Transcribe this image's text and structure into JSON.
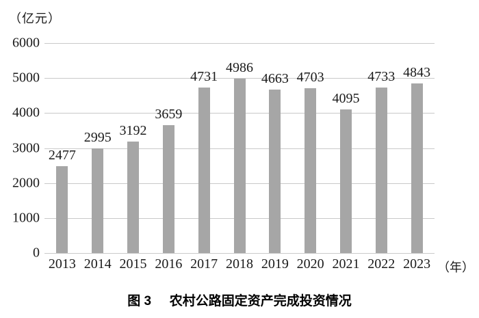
{
  "chart_data": {
    "type": "bar",
    "title": "图 3 农村公路固定资产完成投资情况",
    "y_unit_label": "（亿元）",
    "x_unit_label": "（年）",
    "categories": [
      "2013",
      "2014",
      "2015",
      "2016",
      "2017",
      "2018",
      "2019",
      "2020",
      "2021",
      "2022",
      "2023"
    ],
    "values": [
      2477,
      2995,
      3192,
      3659,
      4731,
      4986,
      4663,
      4703,
      4095,
      4733,
      4843
    ],
    "xlabel": "年",
    "ylabel": "亿元",
    "ylim": [
      0,
      6000
    ],
    "yticks": [
      0,
      1000,
      2000,
      3000,
      4000,
      5000,
      6000
    ],
    "grid": "horizontal",
    "legend": "none",
    "bar_color": "#a6a6a6",
    "grid_color": "#c9c9c9",
    "text_color": "#1a1a1a"
  },
  "caption": {
    "figure_label": "图 3",
    "title": "农村公路固定资产完成投资情况"
  }
}
